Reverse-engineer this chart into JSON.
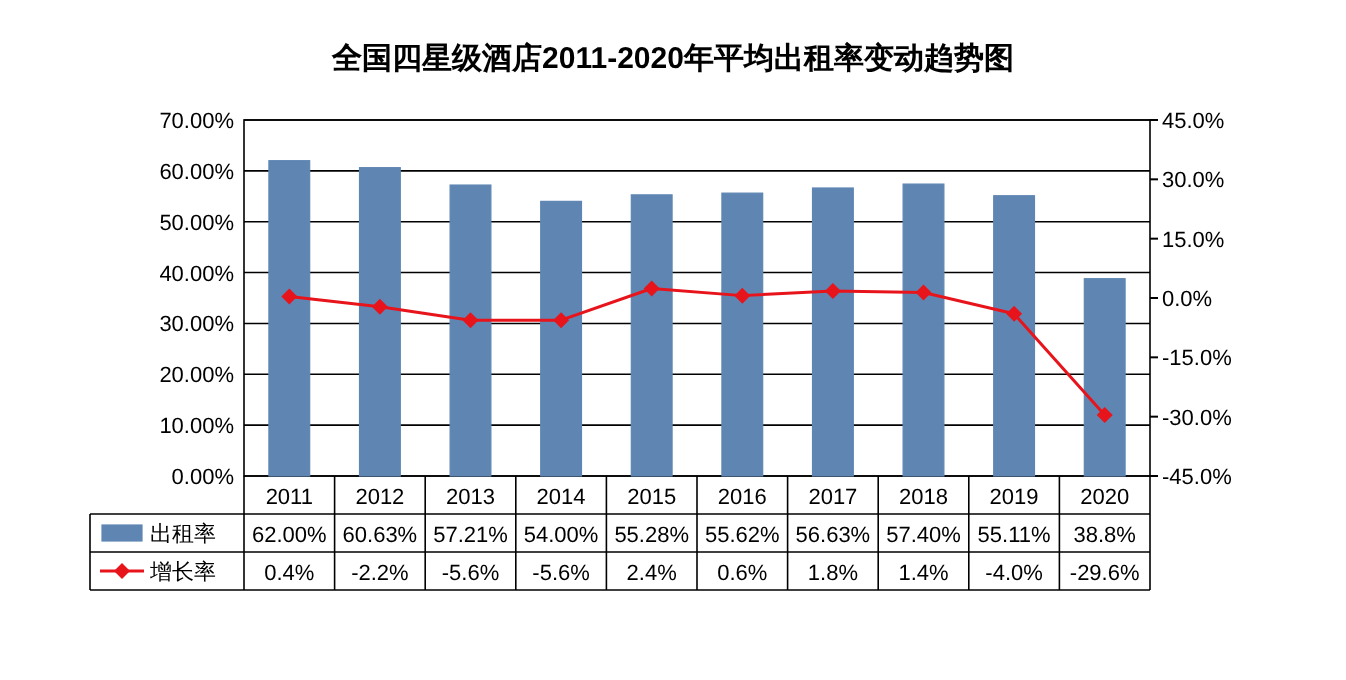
{
  "chart_data": {
    "type": "bar",
    "title": "全国四星级酒店2011-2020年平均出租率变动趋势图",
    "categories": [
      "2011",
      "2012",
      "2013",
      "2014",
      "2015",
      "2016",
      "2017",
      "2018",
      "2019",
      "2020"
    ],
    "series": [
      {
        "name": "出租率",
        "color": "#5f86b3",
        "values": [
          62.0,
          60.63,
          57.21,
          54.0,
          55.28,
          55.62,
          56.63,
          57.4,
          55.11,
          38.8
        ],
        "value_labels": [
          "62.00%",
          "60.63%",
          "57.21%",
          "54.00%",
          "55.28%",
          "55.62%",
          "56.63%",
          "57.40%",
          "55.11%",
          "38.8%"
        ]
      },
      {
        "name": "增长率",
        "type": "line",
        "axis": "y2",
        "color": "#e8141b",
        "marker": "diamond",
        "values": [
          0.4,
          -2.2,
          -5.6,
          -5.6,
          2.4,
          0.6,
          1.8,
          1.4,
          -4.0,
          -29.6
        ],
        "value_labels": [
          "0.4%",
          "-2.2%",
          "-5.6%",
          "-5.6%",
          "2.4%",
          "0.6%",
          "1.8%",
          "1.4%",
          "-4.0%",
          "-29.6%"
        ]
      }
    ],
    "ylim": [
      0,
      70
    ],
    "yticks": [
      {
        "value": 0,
        "label": "0.00%"
      },
      {
        "value": 10,
        "label": "10.00%"
      },
      {
        "value": 20,
        "label": "20.00%"
      },
      {
        "value": 30,
        "label": "30.00%"
      },
      {
        "value": 40,
        "label": "40.00%"
      },
      {
        "value": 50,
        "label": "50.00%"
      },
      {
        "value": 60,
        "label": "60.00%"
      },
      {
        "value": 70,
        "label": "70.00%"
      }
    ],
    "y2lim": [
      -45,
      45
    ],
    "y2ticks": [
      {
        "value": -45,
        "label": "-45.0%"
      },
      {
        "value": -30,
        "label": "-30.0%"
      },
      {
        "value": -15,
        "label": "-15.0%"
      },
      {
        "value": 0,
        "label": "0.0%"
      },
      {
        "value": 15,
        "label": "15.0%"
      },
      {
        "value": 30,
        "label": "30.0%"
      },
      {
        "value": 45,
        "label": "45.0%"
      }
    ],
    "grid": "y",
    "legend": "bottom"
  }
}
